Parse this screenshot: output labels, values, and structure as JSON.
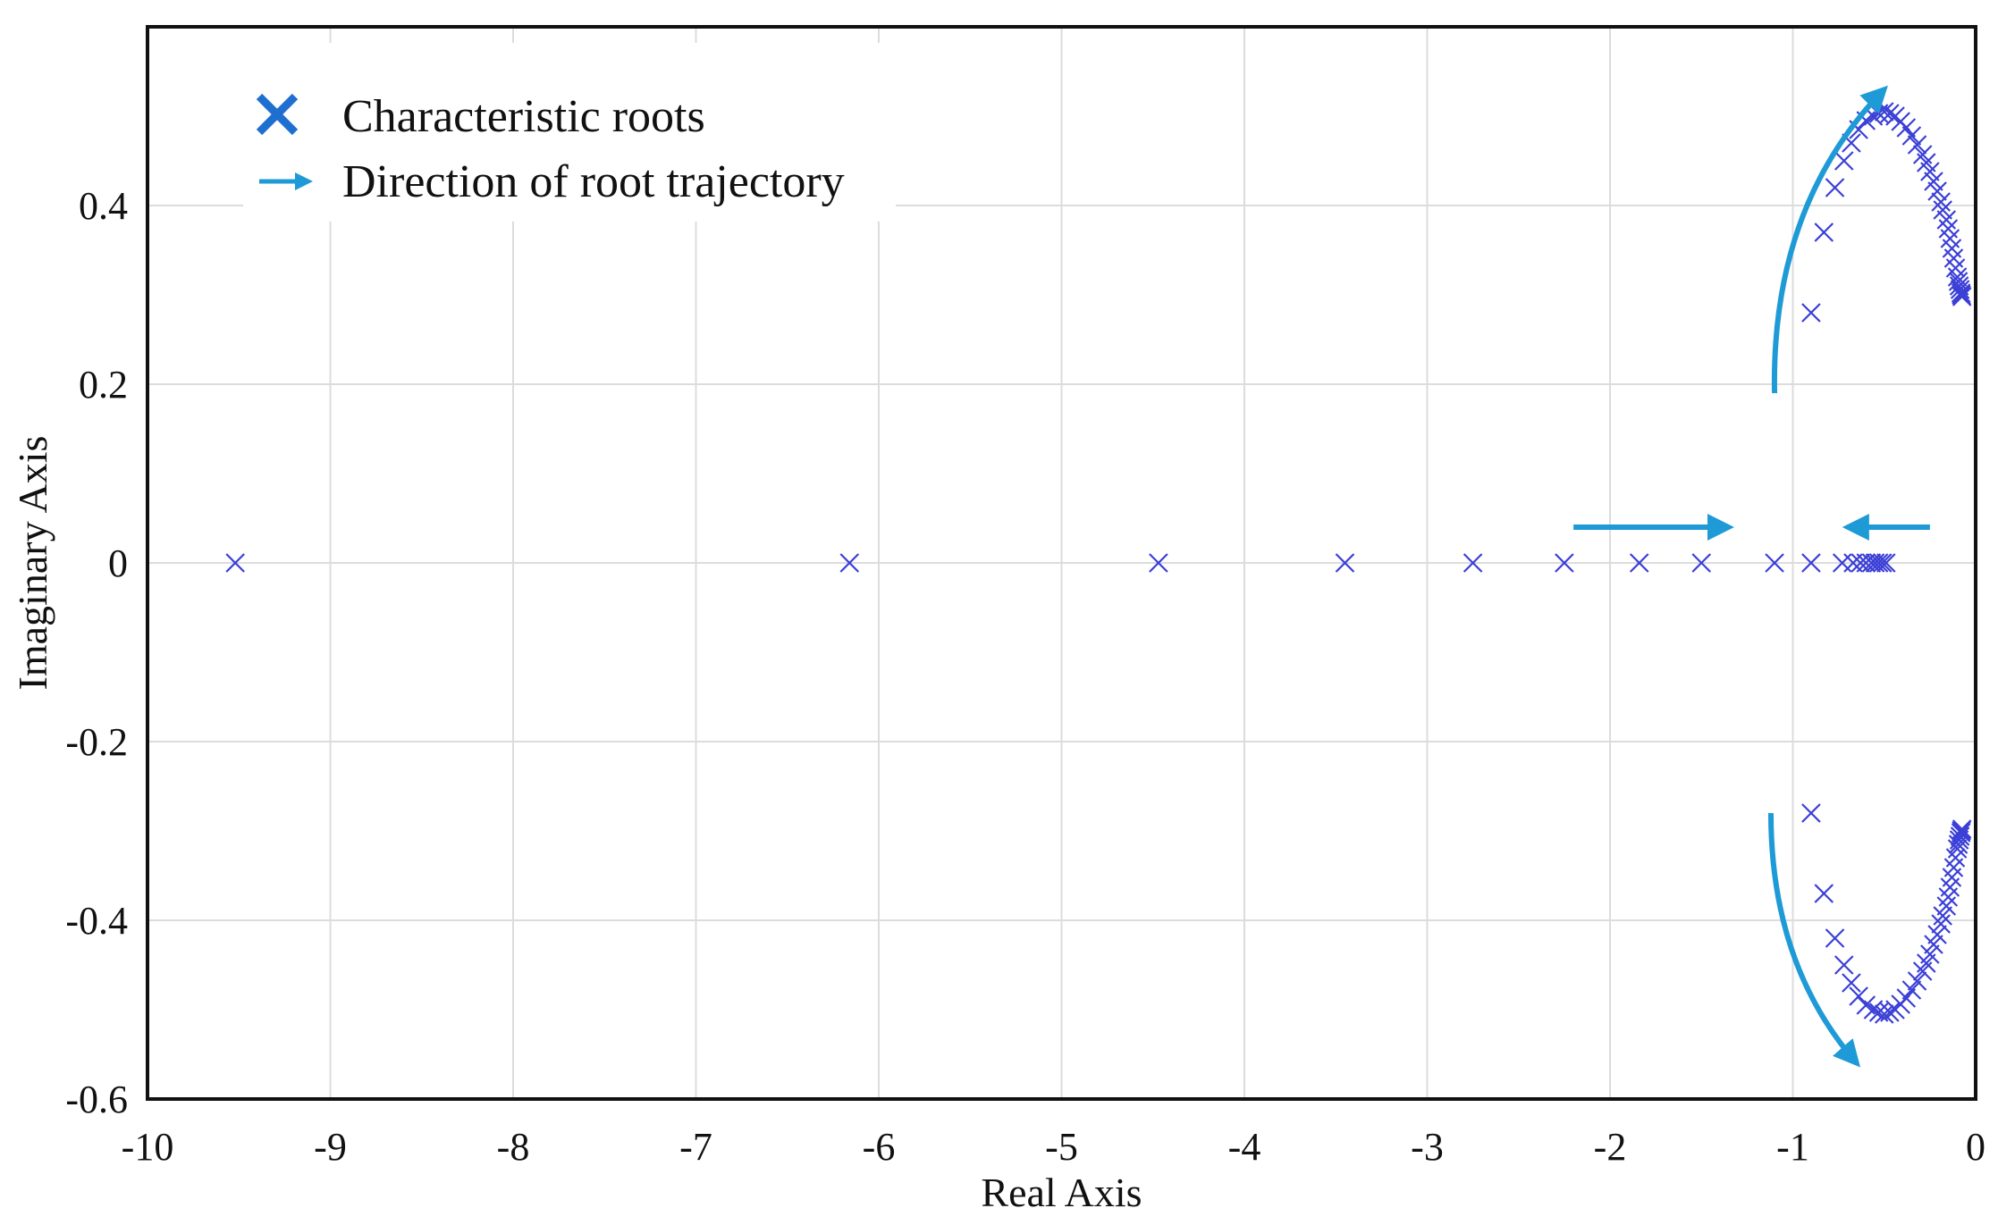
{
  "chart_data": {
    "type": "scatter",
    "title": "",
    "xlabel": "Real Axis",
    "ylabel": "Imaginary Axis",
    "xlim": [
      -10,
      0
    ],
    "ylim": [
      -0.6,
      0.6
    ],
    "xticks": [
      -10,
      -9,
      -8,
      -7,
      -6,
      -5,
      -4,
      -3,
      -2,
      -1,
      0
    ],
    "xtick_labels": [
      "-10",
      "-9",
      "-8",
      "-7",
      "-6",
      "-5",
      "-4",
      "-3",
      "-2",
      "-1",
      "0"
    ],
    "yticks": [
      -0.6,
      -0.4,
      -0.2,
      0,
      0.2,
      0.4
    ],
    "ytick_labels": [
      "-0.6",
      "-0.4",
      "-0.2",
      "0",
      "0.2",
      "0.4"
    ],
    "grid": true,
    "legend": {
      "placement": "top-left",
      "entries": [
        {
          "label": "Characteristic roots",
          "marker": "x"
        },
        {
          "label": "Direction of root trajectory",
          "marker": "arrow"
        }
      ]
    },
    "series": [
      {
        "name": "Characteristic roots (real axis)",
        "x": [
          -9.52,
          -6.16,
          -4.47,
          -3.45,
          -2.75,
          -2.25,
          -1.84,
          -1.5,
          -1.1,
          -0.9,
          -0.73,
          -0.67,
          -0.63,
          -0.6,
          -0.57,
          -0.55,
          -0.53,
          -0.51,
          -0.49
        ],
        "y": [
          0,
          0,
          0,
          0,
          0,
          0,
          0,
          0,
          0,
          0,
          0,
          0,
          0,
          0,
          0,
          0,
          0,
          0,
          0
        ]
      },
      {
        "name": "Characteristic roots (upper branch)",
        "x": [
          -0.9,
          -0.83,
          -0.77,
          -0.72,
          -0.68,
          -0.64,
          -0.6,
          -0.56,
          -0.53,
          -0.5,
          -0.47,
          -0.44,
          -0.41,
          -0.38,
          -0.35,
          -0.32,
          -0.29,
          -0.27,
          -0.25,
          -0.23,
          -0.21,
          -0.19,
          -0.18,
          -0.16,
          -0.15,
          -0.14,
          -0.13,
          -0.12,
          -0.11,
          -0.1,
          -0.095,
          -0.09,
          -0.085,
          -0.08,
          -0.078,
          -0.075
        ],
        "y": [
          0.28,
          0.37,
          0.42,
          0.45,
          0.47,
          0.485,
          0.495,
          0.5,
          0.503,
          0.505,
          0.503,
          0.5,
          0.494,
          0.487,
          0.478,
          0.468,
          0.457,
          0.448,
          0.438,
          0.427,
          0.416,
          0.404,
          0.395,
          0.384,
          0.374,
          0.363,
          0.352,
          0.341,
          0.33,
          0.32,
          0.315,
          0.31,
          0.306,
          0.302,
          0.3,
          0.298
        ]
      },
      {
        "name": "Characteristic roots (lower branch)",
        "x": [
          -0.9,
          -0.83,
          -0.77,
          -0.72,
          -0.68,
          -0.64,
          -0.6,
          -0.56,
          -0.53,
          -0.5,
          -0.47,
          -0.44,
          -0.41,
          -0.38,
          -0.35,
          -0.32,
          -0.29,
          -0.27,
          -0.25,
          -0.23,
          -0.21,
          -0.19,
          -0.18,
          -0.16,
          -0.15,
          -0.14,
          -0.13,
          -0.12,
          -0.11,
          -0.1,
          -0.095,
          -0.09,
          -0.085,
          -0.08,
          -0.078,
          -0.075
        ],
        "y": [
          -0.28,
          -0.37,
          -0.42,
          -0.45,
          -0.47,
          -0.485,
          -0.495,
          -0.5,
          -0.503,
          -0.505,
          -0.503,
          -0.5,
          -0.494,
          -0.487,
          -0.478,
          -0.468,
          -0.457,
          -0.448,
          -0.438,
          -0.427,
          -0.416,
          -0.404,
          -0.395,
          -0.384,
          -0.374,
          -0.363,
          -0.352,
          -0.341,
          -0.33,
          -0.32,
          -0.315,
          -0.31,
          -0.306,
          -0.302,
          -0.3,
          -0.298
        ]
      }
    ],
    "annotations": [
      {
        "kind": "curved-arrow",
        "from": [
          -1.1,
          0.19
        ],
        "control": [
          -1.12,
          0.4
        ],
        "to": [
          -0.5,
          0.53
        ]
      },
      {
        "kind": "curved-arrow",
        "from": [
          -1.12,
          -0.28
        ],
        "control": [
          -1.12,
          -0.45
        ],
        "to": [
          -0.65,
          -0.56
        ]
      },
      {
        "kind": "arrow",
        "from": [
          -2.2,
          0.04
        ],
        "to": [
          -1.35,
          0.04
        ]
      },
      {
        "kind": "arrow",
        "from": [
          -0.25,
          0.04
        ],
        "to": [
          -0.7,
          0.04
        ]
      }
    ]
  },
  "colors": {
    "marker": "#3b3fd6",
    "legend_marker": "#1f6fd0",
    "arrow": "#1e9ad6",
    "frame": "#111111",
    "grid": "#dcdcdc"
  }
}
